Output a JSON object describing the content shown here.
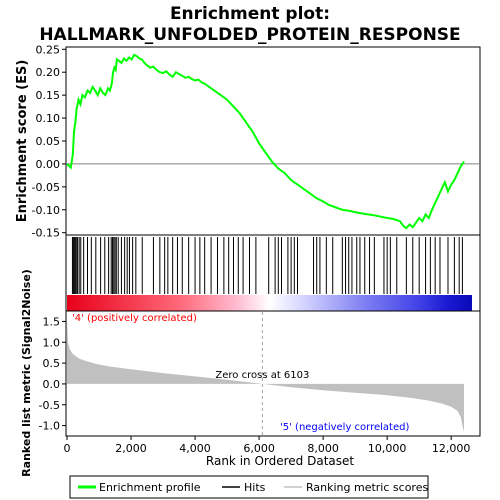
{
  "chart_data": {
    "type": "line",
    "title": "Enrichment plot:",
    "subtitle": "HALLMARK_UNFOLDED_PROTEIN_RESPONSE",
    "top_panel": {
      "ylabel": "Enrichment score (ES)",
      "ylim": [
        -0.155,
        0.255
      ],
      "yticks": [
        -0.15,
        -0.1,
        -0.05,
        0.0,
        0.05,
        0.1,
        0.15,
        0.2,
        0.25
      ],
      "ytick_labels": [
        "-0.15",
        "-0.10",
        "-0.05",
        "0.00",
        "0.05",
        "0.10",
        "0.15",
        "0.20",
        "0.25"
      ],
      "series": [
        {
          "name": "Enrichment profile",
          "color": "#00ff00",
          "x": [
            0,
            120,
            180,
            220,
            260,
            300,
            360,
            420,
            480,
            560,
            640,
            720,
            800,
            880,
            960,
            1040,
            1120,
            1200,
            1280,
            1340,
            1400,
            1440,
            1480,
            1520,
            1560,
            1620,
            1700,
            1780,
            1860,
            1940,
            2020,
            2100,
            2180,
            2260,
            2340,
            2420,
            2500,
            2600,
            2700,
            2800,
            2900,
            3000,
            3100,
            3200,
            3300,
            3400,
            3500,
            3600,
            3700,
            3800,
            3900,
            4000,
            4100,
            4200,
            4300,
            4400,
            4600,
            4800,
            5000,
            5200,
            5400,
            5600,
            5800,
            6000,
            6200,
            6400,
            6600,
            6800,
            7000,
            7200,
            7400,
            7600,
            7800,
            8000,
            8200,
            8400,
            8600,
            8800,
            9000,
            9200,
            9400,
            9600,
            9800,
            10000,
            10200,
            10400,
            10500,
            10600,
            10700,
            10800,
            10900,
            11000,
            11100,
            11200,
            11300,
            11400,
            11500,
            11600,
            11700,
            11800,
            11900,
            12000,
            12100,
            12200,
            12300,
            12400
          ],
          "y": [
            0.0,
            -0.008,
            0.02,
            0.07,
            0.09,
            0.12,
            0.14,
            0.13,
            0.15,
            0.145,
            0.16,
            0.155,
            0.168,
            0.16,
            0.15,
            0.165,
            0.155,
            0.15,
            0.165,
            0.16,
            0.175,
            0.2,
            0.21,
            0.205,
            0.228,
            0.225,
            0.22,
            0.23,
            0.225,
            0.232,
            0.228,
            0.238,
            0.235,
            0.23,
            0.228,
            0.22,
            0.215,
            0.21,
            0.212,
            0.205,
            0.2,
            0.198,
            0.202,
            0.195,
            0.19,
            0.2,
            0.196,
            0.192,
            0.188,
            0.19,
            0.185,
            0.182,
            0.184,
            0.178,
            0.175,
            0.17,
            0.16,
            0.15,
            0.14,
            0.125,
            0.11,
            0.09,
            0.07,
            0.045,
            0.025,
            0.005,
            -0.01,
            -0.02,
            -0.035,
            -0.045,
            -0.055,
            -0.065,
            -0.075,
            -0.082,
            -0.09,
            -0.095,
            -0.1,
            -0.102,
            -0.105,
            -0.108,
            -0.11,
            -0.112,
            -0.115,
            -0.118,
            -0.12,
            -0.125,
            -0.135,
            -0.14,
            -0.132,
            -0.138,
            -0.128,
            -0.118,
            -0.125,
            -0.11,
            -0.118,
            -0.1,
            -0.085,
            -0.07,
            -0.055,
            -0.04,
            -0.06,
            -0.045,
            -0.035,
            -0.02,
            -0.005,
            0.005
          ]
        }
      ]
    },
    "hits_panel": {
      "series_name": "Hits",
      "hit_positions": [
        170,
        200,
        230,
        260,
        290,
        330,
        380,
        430,
        520,
        640,
        760,
        900,
        1050,
        1180,
        1300,
        1380,
        1420,
        1460,
        1500,
        1540,
        1600,
        1700,
        1800,
        1880,
        1950,
        2050,
        2150,
        2350,
        2700,
        2900,
        3050,
        3150,
        3300,
        3450,
        3600,
        3800,
        4000,
        4150,
        4300,
        4500,
        4700,
        4900,
        5050,
        5200,
        5350,
        5500,
        5700,
        5900,
        6300,
        6500,
        6600,
        6700,
        6900,
        7000,
        7100,
        7200,
        7700,
        7800,
        7900,
        8100,
        8300,
        8600,
        8700,
        8800,
        8900,
        9050,
        9150,
        9300,
        9450,
        9600,
        9900,
        10000,
        10100,
        10300,
        10600,
        10800,
        11000,
        11200,
        11350,
        11500,
        11650,
        11900,
        12100,
        12250,
        12350
      ]
    },
    "ranking_panel": {
      "ylabel": "Ranked list metric (Signal2Noise)",
      "xlabel": "Rank in Ordered Dataset",
      "ylim": [
        -1.25,
        1.75
      ],
      "yticks": [
        -1.0,
        -0.5,
        0.0,
        0.5,
        1.0,
        1.5
      ],
      "ytick_labels": [
        "-1.0",
        "-0.5",
        "0.0",
        "0.5",
        "1.0",
        "1.5"
      ],
      "xlim": [
        0,
        12900
      ],
      "xticks": [
        0,
        2000,
        4000,
        6000,
        8000,
        10000,
        12000
      ],
      "xtick_labels": [
        "0",
        "2,000",
        "4,000",
        "6,000",
        "8,000",
        "10,000",
        "12,000"
      ],
      "curve_x": [
        0,
        30,
        80,
        150,
        250,
        400,
        600,
        900,
        1300,
        2000,
        3000,
        4000,
        5000,
        6103,
        7000,
        8000,
        9000,
        10000,
        10800,
        11300,
        11700,
        12000,
        12200,
        12300,
        12350,
        12400
      ],
      "curve_y": [
        1.55,
        1.0,
        0.85,
        0.75,
        0.68,
        0.6,
        0.55,
        0.48,
        0.42,
        0.35,
        0.26,
        0.18,
        0.1,
        0.0,
        -0.08,
        -0.15,
        -0.21,
        -0.27,
        -0.34,
        -0.4,
        -0.47,
        -0.55,
        -0.65,
        -0.8,
        -1.0,
        -1.15
      ],
      "zero_cross_label": "Zero cross at 6103",
      "zero_cross_x": 6103,
      "pos_label": "'4' (positively correlated)",
      "neg_label": "'5' (negatively correlated)"
    },
    "colors": {
      "profile": "#00ff00",
      "hit": "#000000",
      "ranking_fill": "#c0c0c0",
      "pos_label": "#ff0000",
      "neg_label": "#0000ff"
    },
    "legend": {
      "placement": "bottom",
      "items": [
        {
          "label": "Enrichment profile",
          "color": "#00ff00",
          "kind": "thick-line"
        },
        {
          "label": "Hits",
          "color": "#000000",
          "kind": "line"
        },
        {
          "label": "Ranking metric scores",
          "color": "#c0c0c0",
          "kind": "line"
        }
      ]
    }
  }
}
